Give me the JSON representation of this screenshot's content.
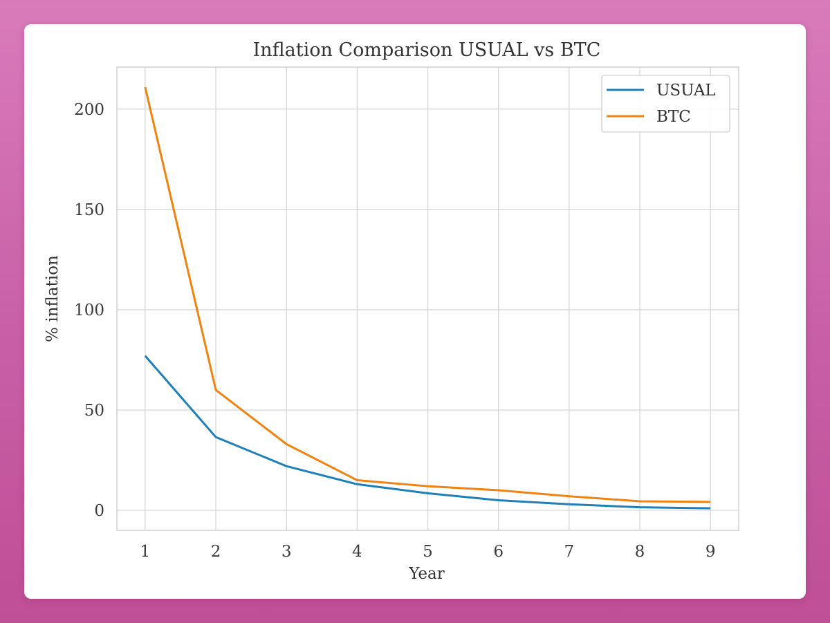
{
  "chart_data": {
    "type": "line",
    "title": "Inflation Comparison USUAL vs BTC",
    "xlabel": "Year",
    "ylabel": "% inflation",
    "x": [
      1,
      2,
      3,
      4,
      5,
      6,
      7,
      8,
      9
    ],
    "xlim": [
      0.6,
      9.4
    ],
    "ylim": [
      -10,
      221
    ],
    "xticks": [
      1,
      2,
      3,
      4,
      5,
      6,
      7,
      8,
      9
    ],
    "yticks": [
      0,
      50,
      100,
      150,
      200
    ],
    "grid": true,
    "legend_position": "top-right",
    "series": [
      {
        "name": "USUAL",
        "color": "#1f7fb8",
        "values": [
          77,
          36.5,
          22,
          13,
          8.5,
          5,
          3,
          1.5,
          1
        ]
      },
      {
        "name": "BTC",
        "color": "#f0820f",
        "values": [
          211,
          60,
          33,
          15,
          12,
          10,
          7,
          4.5,
          4.2
        ]
      }
    ]
  }
}
